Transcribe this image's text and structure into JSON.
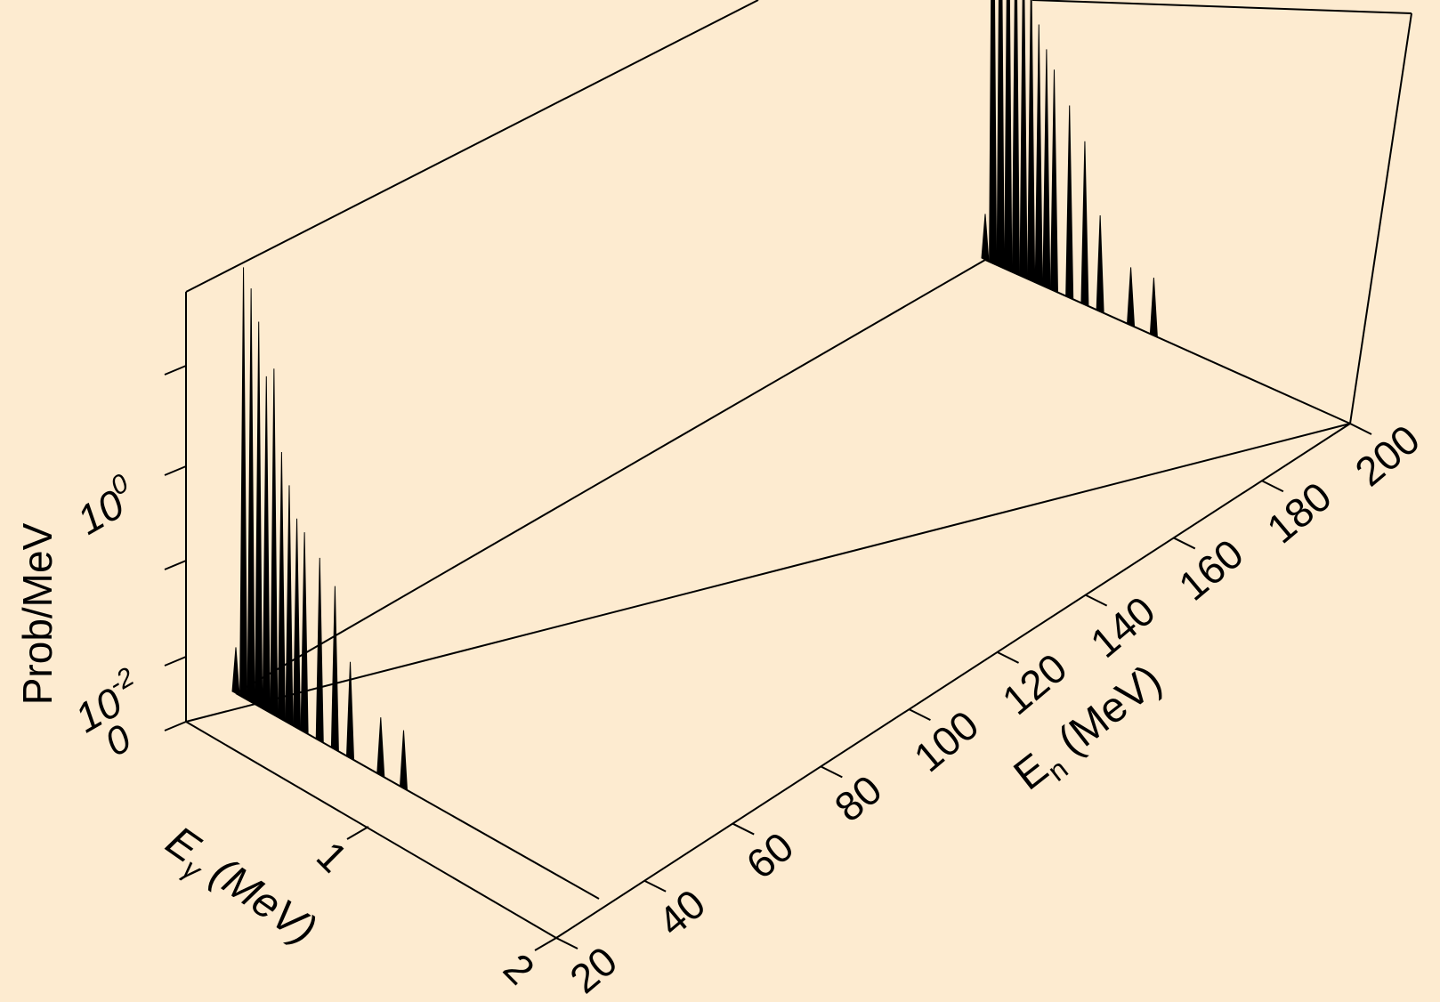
{
  "chart_data": {
    "type": "area",
    "projection": "3d waterfall",
    "z_scale": "log",
    "grid": false,
    "axes": {
      "x": {
        "label": "E",
        "label_sub": "γ",
        "label_unit": " (MeV)",
        "ticks": [
          "0",
          "1",
          "2"
        ],
        "range": [
          0,
          2
        ]
      },
      "y": {
        "label": "E",
        "label_sub": "n",
        "label_unit": " (MeV)",
        "ticks": [
          "20",
          "40",
          "60",
          "80",
          "100",
          "120",
          "140",
          "160",
          "180",
          "200"
        ],
        "range": [
          20,
          200
        ]
      },
      "z": {
        "label": "Prob/MeV",
        "ticks": [
          {
            "base": "0",
            "exp": ""
          },
          {
            "base": "10",
            "exp": "-2"
          },
          {
            "base": "10",
            "exp": "0"
          }
        ]
      }
    },
    "series": [
      {
        "e_n": 20,
        "spectrum": [
          {
            "e_gamma": 0.0,
            "value": 0.003
          },
          {
            "e_gamma": 0.02,
            "value": 30
          },
          {
            "e_gamma": 0.04,
            "value": 20
          },
          {
            "e_gamma": 0.06,
            "value": 10
          },
          {
            "e_gamma": 0.08,
            "value": 3
          },
          {
            "e_gamma": 0.1,
            "value": 4
          },
          {
            "e_gamma": 0.12,
            "value": 0.6
          },
          {
            "e_gamma": 0.14,
            "value": 0.3
          },
          {
            "e_gamma": 0.16,
            "value": 0.15
          },
          {
            "e_gamma": 0.18,
            "value": 0.12
          },
          {
            "e_gamma": 0.22,
            "value": 0.08
          },
          {
            "e_gamma": 0.26,
            "value": 0.05
          },
          {
            "e_gamma": 0.3,
            "value": 0.01
          },
          {
            "e_gamma": 0.38,
            "value": 0.004
          },
          {
            "e_gamma": 0.44,
            "value": 0.004
          },
          {
            "e_gamma": 0.52,
            "value": 0.001
          }
        ]
      },
      {
        "e_n": 200,
        "spectrum": [
          {
            "e_gamma": 0.0,
            "value": 0.003
          },
          {
            "e_gamma": 0.02,
            "value": 200
          },
          {
            "e_gamma": 0.04,
            "value": 100
          },
          {
            "e_gamma": 0.06,
            "value": 40
          },
          {
            "e_gamma": 0.08,
            "value": 10
          },
          {
            "e_gamma": 0.1,
            "value": 5
          },
          {
            "e_gamma": 0.12,
            "value": 2
          },
          {
            "e_gamma": 0.14,
            "value": 0.5
          },
          {
            "e_gamma": 0.16,
            "value": 0.3
          },
          {
            "e_gamma": 0.18,
            "value": 0.2
          },
          {
            "e_gamma": 0.22,
            "value": 0.1
          },
          {
            "e_gamma": 0.26,
            "value": 0.05
          },
          {
            "e_gamma": 0.3,
            "value": 0.01
          },
          {
            "e_gamma": 0.38,
            "value": 0.004
          },
          {
            "e_gamma": 0.44,
            "value": 0.004
          },
          {
            "e_gamma": 0.52,
            "value": 0.001
          }
        ]
      }
    ]
  }
}
